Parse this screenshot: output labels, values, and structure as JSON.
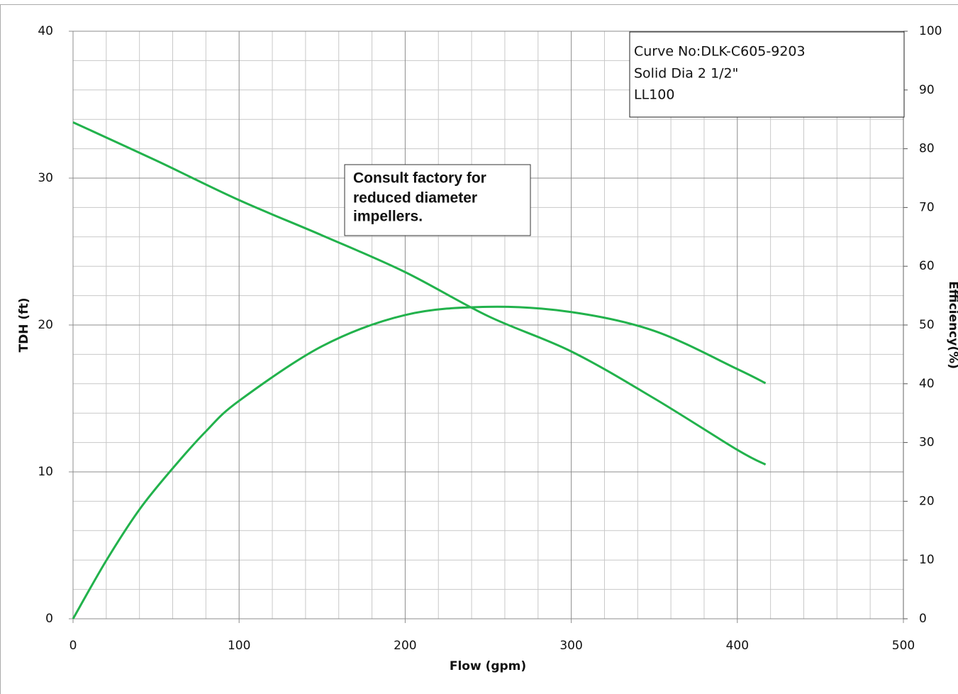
{
  "chart_data": {
    "type": "line",
    "x_label": "Flow (gpm)",
    "y_label": "TDH (ft)",
    "y2_label": "Efficiency(%)",
    "xlim": [
      0,
      500
    ],
    "xticks": [
      0,
      100,
      200,
      300,
      400,
      500
    ],
    "xgrid": [
      20,
      40,
      60,
      80,
      120,
      140,
      160,
      180,
      220,
      240,
      260,
      280,
      320,
      340,
      360,
      380,
      420,
      440,
      460,
      480
    ],
    "ylim": [
      0,
      40
    ],
    "yticks": [
      0,
      10,
      20,
      30,
      40
    ],
    "ygrid": [
      2,
      4,
      6,
      8,
      12,
      14,
      16,
      18,
      22,
      24,
      26,
      28,
      32,
      34,
      36,
      38
    ],
    "y2lim": [
      0,
      100
    ],
    "y2ticks": [
      0,
      10,
      20,
      30,
      40,
      50,
      60,
      70,
      80,
      90,
      100
    ],
    "grid": true,
    "series": [
      {
        "name": "TDH",
        "color": "#22b24c",
        "x": [
          0,
          50,
          100,
          150,
          200,
          250,
          300,
          350,
          400,
          417
        ],
        "values": [
          33.8,
          31.2,
          28.5,
          26.1,
          23.6,
          20.6,
          18.2,
          15.0,
          11.5,
          10.5
        ]
      },
      {
        "name": "Efficiency",
        "color": "#22b24c",
        "axis": "y2",
        "x": [
          0,
          20,
          40,
          60,
          80,
          100,
          150,
          200,
          250,
          300,
          350,
          400,
          417
        ],
        "values": [
          0,
          9.9,
          18.6,
          25.6,
          31.9,
          37.1,
          46.4,
          51.7,
          53.1,
          52.2,
          49.0,
          42.5,
          40.1
        ]
      }
    ],
    "annotations": [
      {
        "lines": [
          "Consult factory for",
          "reduced diameter",
          "impellers."
        ]
      },
      {
        "lines": [
          "Curve No:DLK-C605-9203",
          "Solid Dia 2 1/2\"",
          "LL100"
        ]
      }
    ]
  }
}
